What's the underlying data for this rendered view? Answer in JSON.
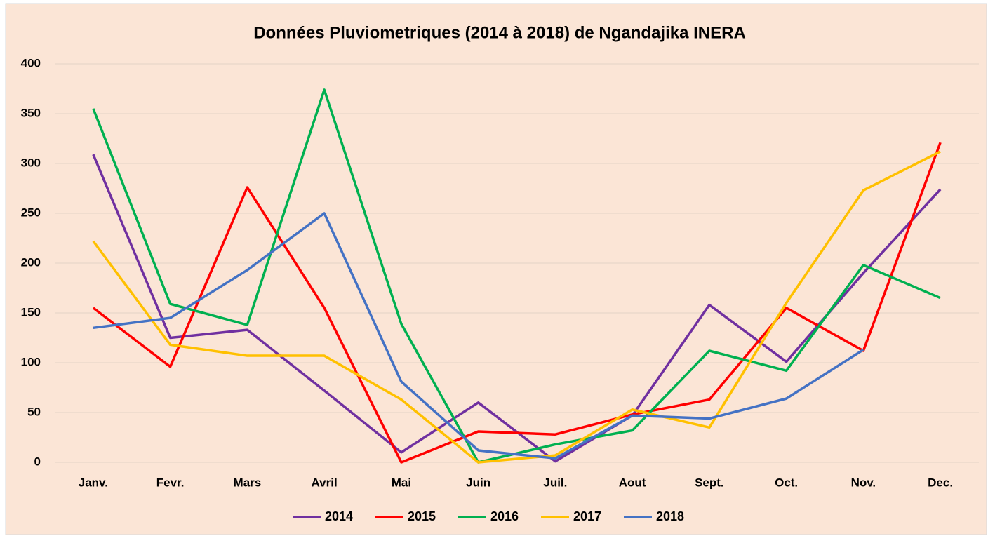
{
  "chart_data": {
    "type": "line",
    "title": "Données Pluviometriques (2014 à 2018) de  Ngandajika INERA",
    "categories": [
      "Janv.",
      "Fevr.",
      "Mars",
      "Avril",
      "Mai",
      "Juin",
      "Juil.",
      "Aout",
      "Sept.",
      "Oct.",
      "Nov.",
      "Dec."
    ],
    "series": [
      {
        "name": "2014",
        "color": "#7030a0",
        "values": [
          309,
          125,
          133,
          72,
          10,
          60,
          1,
          47,
          158,
          101,
          190,
          274
        ]
      },
      {
        "name": "2015",
        "color": "#ff0000",
        "values": [
          155,
          96,
          276,
          155,
          0,
          31,
          28,
          48,
          63,
          155,
          112,
          321
        ]
      },
      {
        "name": "2016",
        "color": "#00b050",
        "values": [
          355,
          159,
          138,
          374,
          139,
          0,
          18,
          32,
          112,
          92,
          198,
          165
        ]
      },
      {
        "name": "2017",
        "color": "#ffc000",
        "values": [
          222,
          118,
          107,
          107,
          63,
          0,
          7,
          53,
          35,
          160,
          273,
          312
        ]
      },
      {
        "name": "2018",
        "color": "#4472c4",
        "values": [
          135,
          145,
          193,
          250,
          81,
          12,
          4,
          47,
          44,
          64,
          113,
          null
        ]
      }
    ],
    "ylim": [
      0,
      400
    ],
    "yticks": [
      0,
      50,
      100,
      150,
      200,
      250,
      300,
      350,
      400
    ],
    "grid": true,
    "legend": "bottom"
  }
}
